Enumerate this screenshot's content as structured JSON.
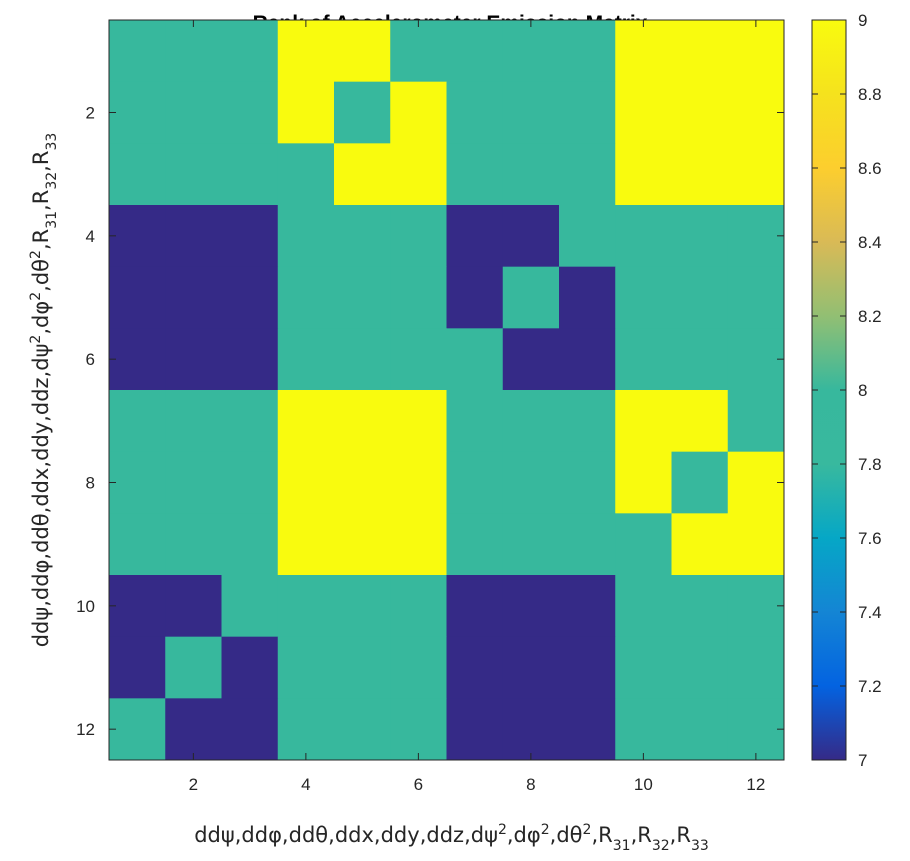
{
  "chart_data": {
    "type": "heatmap",
    "title": "Rank of Accelerometer Emission Matrix",
    "xlabel": "ddψ,ddφ,ddθ,ddx,ddy,ddz,dψ2,dφ2,dθ2,R31,R32,R33",
    "ylabel": "ddψ,ddφ,ddθ,ddx,ddy,ddz,dψ2,dφ2,dθ2,R31,R32,R33",
    "x_ticks": [
      2,
      4,
      6,
      8,
      10,
      12
    ],
    "y_ticks": [
      2,
      4,
      6,
      8,
      10,
      12
    ],
    "xlim": [
      0.5,
      12.5
    ],
    "ylim": [
      0.5,
      12.5
    ],
    "y_direction": "reverse",
    "matrix": [
      [
        8,
        8,
        8,
        9,
        9,
        8,
        8,
        8,
        8,
        9,
        9,
        9
      ],
      [
        8,
        8,
        8,
        9,
        8,
        9,
        8,
        8,
        8,
        9,
        9,
        9
      ],
      [
        8,
        8,
        8,
        8,
        9,
        9,
        8,
        8,
        8,
        9,
        9,
        9
      ],
      [
        7,
        7,
        7,
        8,
        8,
        8,
        7,
        7,
        8,
        8,
        8,
        8
      ],
      [
        7,
        7,
        7,
        8,
        8,
        8,
        7,
        8,
        7,
        8,
        8,
        8
      ],
      [
        7,
        7,
        7,
        8,
        8,
        8,
        8,
        7,
        7,
        8,
        8,
        8
      ],
      [
        8,
        8,
        8,
        9,
        9,
        9,
        8,
        8,
        8,
        9,
        9,
        8
      ],
      [
        8,
        8,
        8,
        9,
        9,
        9,
        8,
        8,
        8,
        9,
        8,
        9
      ],
      [
        8,
        8,
        8,
        9,
        9,
        9,
        8,
        8,
        8,
        8,
        9,
        9
      ],
      [
        7,
        7,
        8,
        8,
        8,
        8,
        7,
        7,
        7,
        8,
        8,
        8
      ],
      [
        7,
        8,
        7,
        8,
        8,
        8,
        7,
        7,
        7,
        8,
        8,
        8
      ],
      [
        8,
        7,
        7,
        8,
        8,
        8,
        7,
        7,
        7,
        8,
        8,
        8
      ]
    ],
    "colorbar": {
      "min": 7,
      "max": 9,
      "ticks": [
        7,
        7.2,
        7.4,
        7.6,
        7.8,
        8,
        8.2,
        8.4,
        8.6,
        8.8,
        9
      ],
      "tick_labels": [
        "7",
        "7.2",
        "7.4",
        "7.6",
        "7.8",
        "8",
        "8.2",
        "8.4",
        "8.6",
        "8.8",
        "9"
      ],
      "colormap": "parula",
      "stops": [
        [
          0.0,
          "#352a87"
        ],
        [
          0.1,
          "#0363e1"
        ],
        [
          0.2,
          "#1485d4"
        ],
        [
          0.3,
          "#06a7c6"
        ],
        [
          0.4,
          "#38b99e"
        ],
        [
          0.5,
          "#37b89d"
        ],
        [
          0.6,
          "#92bf73"
        ],
        [
          0.7,
          "#d9ba56"
        ],
        [
          0.8,
          "#fcce2e"
        ],
        [
          0.9,
          "#f5e21d"
        ],
        [
          1.0,
          "#f9fb0e"
        ]
      ]
    },
    "cell_colors": {
      "7": "#352a87",
      "8": "#37b89d",
      "9": "#f9fb0e"
    },
    "grid": false,
    "legend": "colorbar-right"
  }
}
